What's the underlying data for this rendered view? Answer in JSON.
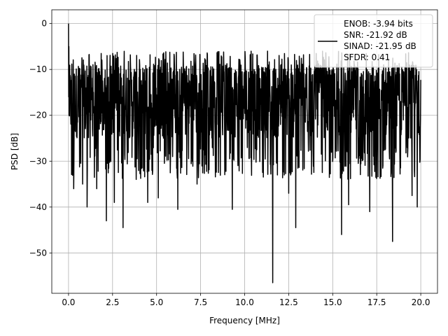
{
  "chart_data": {
    "type": "line",
    "title": "",
    "xlabel": "Frequency [MHz]",
    "ylabel": "PSD [dB]",
    "xlim": [
      -0.95,
      20.95
    ],
    "ylim": [
      -58.8,
      3.0
    ],
    "xticks": [
      0.0,
      2.5,
      5.0,
      7.5,
      10.0,
      12.5,
      15.0,
      17.5,
      20.0
    ],
    "xtick_labels": [
      "0.0",
      "2.5",
      "5.0",
      "7.5",
      "10.0",
      "12.5",
      "15.0",
      "17.5",
      "20.0"
    ],
    "yticks": [
      0,
      -10,
      -20,
      -30,
      -40,
      -50
    ],
    "ytick_labels": [
      "0",
      "−10",
      "−20",
      "−30",
      "−40",
      "−50"
    ],
    "grid": true,
    "legend_position": "top-right",
    "legend_lines": [
      "ENOB: -3.94 bits",
      "SNR: -21.92 dB",
      "SINAD: -21.95 dB",
      "SFDR: 0.41"
    ],
    "line_color": "#000000",
    "grid_color": "#b0b0b0",
    "series": [
      {
        "x_start": 0.0,
        "x_end": 20.0,
        "peak": {
          "x": 0.0,
          "y": 0.0
        },
        "baseline": -17,
        "upper_envelope_min": -12,
        "upper_envelope_max": -6,
        "spikes": [
          {
            "x": 0.3,
            "y": -36
          },
          {
            "x": 0.8,
            "y": -35
          },
          {
            "x": 1.05,
            "y": -40
          },
          {
            "x": 1.6,
            "y": -36
          },
          {
            "x": 2.15,
            "y": -43
          },
          {
            "x": 2.6,
            "y": -39
          },
          {
            "x": 3.1,
            "y": -44.5
          },
          {
            "x": 4.5,
            "y": -39
          },
          {
            "x": 5.1,
            "y": -38
          },
          {
            "x": 6.2,
            "y": -40.5
          },
          {
            "x": 7.3,
            "y": -35
          },
          {
            "x": 9.3,
            "y": -40.5
          },
          {
            "x": 11.6,
            "y": -56.5
          },
          {
            "x": 12.5,
            "y": -37
          },
          {
            "x": 12.9,
            "y": -44.5
          },
          {
            "x": 15.5,
            "y": -46
          },
          {
            "x": 15.9,
            "y": -39.5
          },
          {
            "x": 17.1,
            "y": -41
          },
          {
            "x": 18.4,
            "y": -47.5
          },
          {
            "x": 19.5,
            "y": -37.5
          },
          {
            "x": 19.8,
            "y": -40
          }
        ]
      }
    ]
  }
}
